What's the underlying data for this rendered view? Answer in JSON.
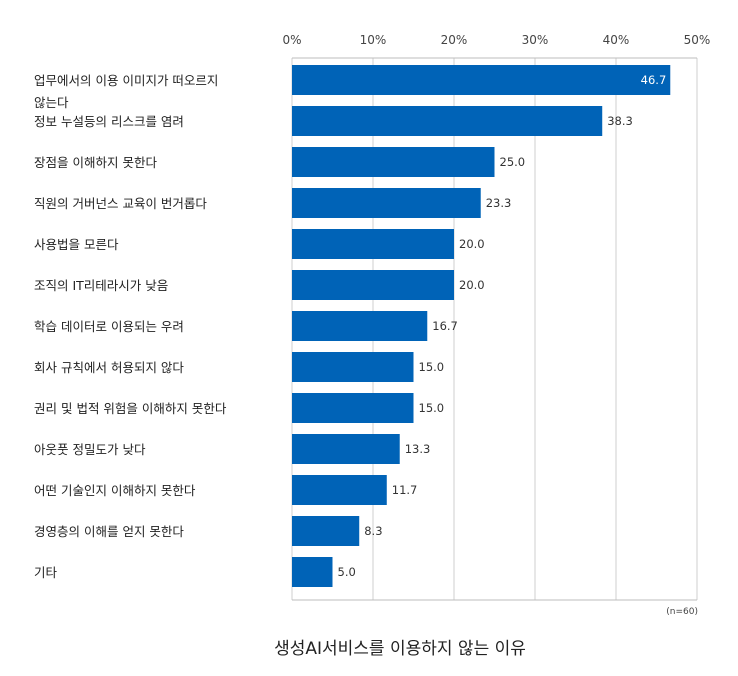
{
  "chart_data": {
    "type": "bar",
    "orientation": "horizontal",
    "title": "생성AI서비스를 이용하지 않는 이유",
    "note": "(n=60)",
    "x_ticks": [
      "0%",
      "10%",
      "20%",
      "30%",
      "40%",
      "50%"
    ],
    "xlim": [
      0,
      50
    ],
    "grid": true,
    "bar_color": "#0063b7",
    "categories": [
      [
        "업무에서의 이용 이미지가 떠오르지",
        "않는다"
      ],
      [
        "정보 누설등의 리스크를 염려"
      ],
      [
        "장점을 이해하지 못한다"
      ],
      [
        "직원의 거버넌스 교육이 번거롭다"
      ],
      [
        "사용법을 모른다"
      ],
      [
        "조직의 IT리테라시가 낮음"
      ],
      [
        "학습 데이터로 이용되는 우려"
      ],
      [
        "회사 규칙에서 허용되지 않다"
      ],
      [
        "권리 및 법적 위험을 이해하지 못한다"
      ],
      [
        "아웃풋 정밀도가 낮다"
      ],
      [
        "어떤 기술인지 이해하지 못한다"
      ],
      [
        "경영층의 이해를 얻지 못한다"
      ],
      [
        "기타"
      ]
    ],
    "values": [
      46.7,
      38.3,
      25.0,
      23.3,
      20.0,
      20.0,
      16.7,
      15.0,
      15.0,
      13.3,
      11.7,
      8.3,
      5.0
    ],
    "value_labels": [
      "46.7",
      "38.3",
      "25.0",
      "23.3",
      "20.0",
      "20.0",
      "16.7",
      "15.0",
      "15.0",
      "13.3",
      "11.7",
      "8.3",
      "5.0"
    ]
  }
}
